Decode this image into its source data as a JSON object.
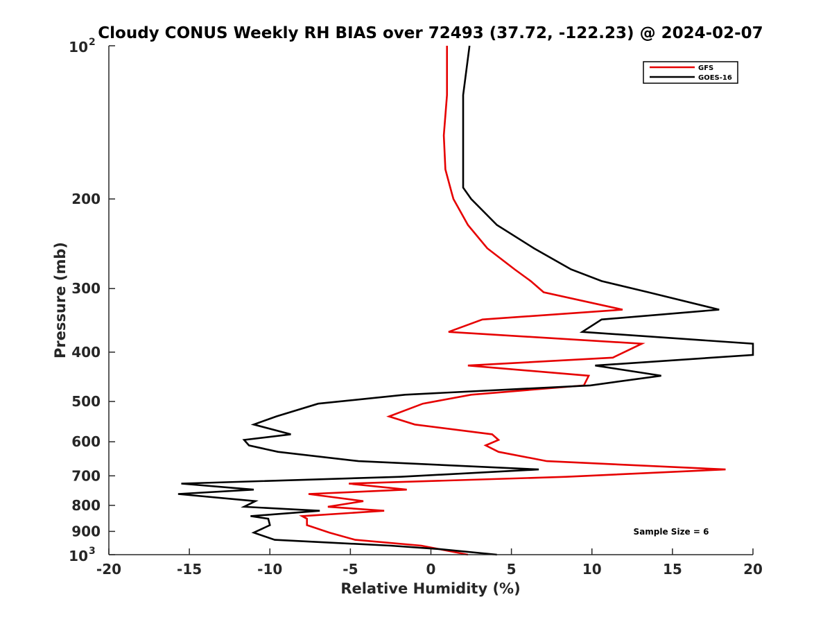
{
  "chart_data": {
    "type": "line",
    "title": "Cloudy CONUS Weekly RH BIAS over 72493 (37.72, -122.23) @ 2024-02-07",
    "xlabel": "Relative Humidity (%)",
    "ylabel": "Pressure (mb)",
    "xlim": [
      -20,
      20
    ],
    "ylim": [
      100,
      1000
    ],
    "y_scale": "log",
    "y_reversed": true,
    "x_ticks": [
      "-20",
      "-15",
      "-10",
      "-5",
      "0",
      "5",
      "10",
      "15",
      "20"
    ],
    "y_ticks": [
      {
        "value": 100,
        "base": "10",
        "exp": "2"
      },
      {
        "value": 200,
        "label": "200"
      },
      {
        "value": 300,
        "label": "300"
      },
      {
        "value": 400,
        "label": "400"
      },
      {
        "value": 500,
        "label": "500"
      },
      {
        "value": 600,
        "label": "600"
      },
      {
        "value": 700,
        "label": "700"
      },
      {
        "value": 800,
        "label": "800"
      },
      {
        "value": 900,
        "label": "900"
      },
      {
        "value": 1000,
        "base": "10",
        "exp": "3"
      }
    ],
    "grid": false,
    "legend_position": "top-right",
    "annotation": "Sample Size = 6",
    "series": [
      {
        "name": "GFS",
        "color": "#e60000",
        "points": [
          [
            1.0,
            100
          ],
          [
            1.0,
            125
          ],
          [
            0.8,
            150
          ],
          [
            0.9,
            175
          ],
          [
            1.3,
            195
          ],
          [
            1.4,
            200
          ],
          [
            2.3,
            225
          ],
          [
            3.5,
            250
          ],
          [
            5.2,
            275
          ],
          [
            6.2,
            290
          ],
          [
            7.0,
            305
          ],
          [
            11.9,
            330
          ],
          [
            3.2,
            345
          ],
          [
            1.1,
            365
          ],
          [
            13.1,
            385
          ],
          [
            11.3,
            410
          ],
          [
            2.3,
            425
          ],
          [
            9.8,
            445
          ],
          [
            9.5,
            465
          ],
          [
            2.5,
            485
          ],
          [
            -0.5,
            505
          ],
          [
            -2.6,
            535
          ],
          [
            -1.0,
            555
          ],
          [
            3.8,
            580
          ],
          [
            4.2,
            595
          ],
          [
            3.4,
            610
          ],
          [
            4.2,
            628
          ],
          [
            7.2,
            655
          ],
          [
            18.3,
            680
          ],
          [
            8.4,
            703
          ],
          [
            -5.1,
            725
          ],
          [
            -1.5,
            745
          ],
          [
            -7.6,
            760
          ],
          [
            -4.2,
            785
          ],
          [
            -6.4,
            805
          ],
          [
            -2.9,
            820
          ],
          [
            -8.0,
            840
          ],
          [
            -7.7,
            850
          ],
          [
            -7.7,
            875
          ],
          [
            -6.3,
            905
          ],
          [
            -4.7,
            935
          ],
          [
            -0.6,
            960
          ],
          [
            0.5,
            975
          ],
          [
            2.3,
            1000
          ]
        ]
      },
      {
        "name": "GOES-16",
        "color": "#000000",
        "points": [
          [
            2.4,
            100
          ],
          [
            2.0,
            125
          ],
          [
            2.0,
            150
          ],
          [
            2.0,
            175
          ],
          [
            2.0,
            190
          ],
          [
            2.5,
            200
          ],
          [
            4.1,
            225
          ],
          [
            6.4,
            250
          ],
          [
            8.7,
            275
          ],
          [
            10.6,
            290
          ],
          [
            13.5,
            305
          ],
          [
            17.9,
            330
          ],
          [
            10.6,
            345
          ],
          [
            9.4,
            365
          ],
          [
            20.0,
            385
          ],
          [
            20.0,
            405
          ],
          [
            10.2,
            425
          ],
          [
            14.3,
            445
          ],
          [
            9.9,
            465
          ],
          [
            -1.6,
            485
          ],
          [
            -7.0,
            505
          ],
          [
            -9.6,
            535
          ],
          [
            -11.0,
            555
          ],
          [
            -8.7,
            580
          ],
          [
            -11.6,
            595
          ],
          [
            -11.3,
            610
          ],
          [
            -9.5,
            628
          ],
          [
            -4.5,
            655
          ],
          [
            6.7,
            680
          ],
          [
            -1.9,
            703
          ],
          [
            -15.5,
            725
          ],
          [
            -11.0,
            745
          ],
          [
            -15.7,
            760
          ],
          [
            -10.9,
            785
          ],
          [
            -11.6,
            805
          ],
          [
            -6.9,
            820
          ],
          [
            -11.2,
            840
          ],
          [
            -10.1,
            850
          ],
          [
            -10.0,
            875
          ],
          [
            -11.0,
            905
          ],
          [
            -9.7,
            935
          ],
          [
            -2.5,
            960
          ],
          [
            0.5,
            975
          ],
          [
            4.1,
            1000
          ]
        ]
      }
    ]
  }
}
